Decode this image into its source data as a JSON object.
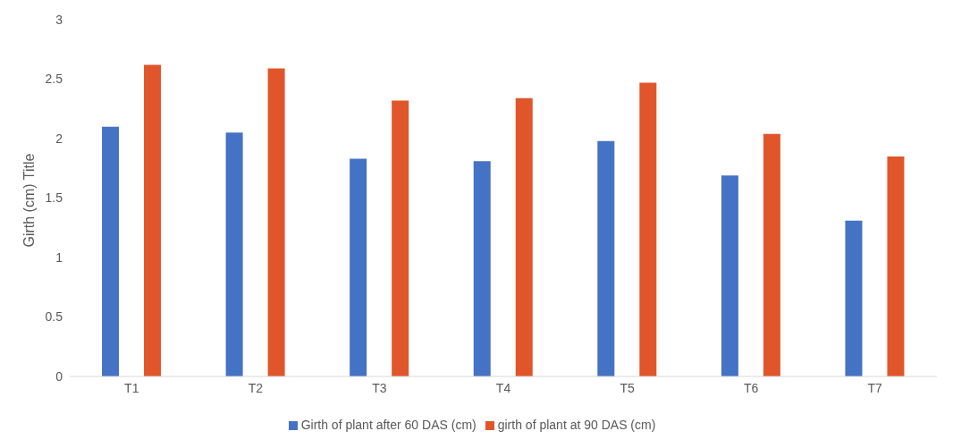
{
  "chart_data": {
    "type": "bar",
    "ylabel": "Girth (cm) Title",
    "categories": [
      "T1",
      "T2",
      "T3",
      "T4",
      "T5",
      "T6",
      "T7"
    ],
    "series": [
      {
        "name": "Girth of plant after 60 DAS (cm)",
        "color": "#4472c4",
        "values": [
          2.1,
          2.05,
          1.83,
          1.81,
          1.98,
          1.69,
          1.31
        ]
      },
      {
        "name": "girth of plant at 90 DAS  (cm)",
        "color": "#e0562a",
        "values": [
          2.62,
          2.59,
          2.32,
          2.34,
          2.47,
          2.04,
          1.85
        ]
      }
    ],
    "ylim": [
      0,
      3
    ],
    "yticks": [
      0,
      0.5,
      1,
      1.5,
      2,
      2.5,
      3
    ],
    "grid": false,
    "legend": "bottom"
  }
}
